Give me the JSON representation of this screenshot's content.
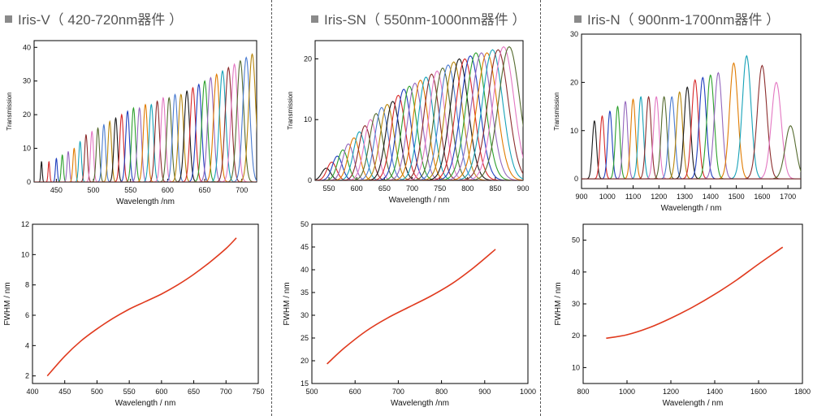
{
  "panels": [
    {
      "title": "Iris-V（ 420-720nm器件 ）"
    },
    {
      "title": "Iris-SN（ 550nm-1000nm器件 ）"
    },
    {
      "title": "Iris-N（ 900nm-1700nm器件 ）"
    }
  ],
  "chart_data": [
    {
      "type": "line",
      "ylabel": "Transmission",
      "xlabel": "Wavelength /nm",
      "xlim": [
        420,
        720
      ],
      "ylim": [
        0,
        42
      ],
      "xticks": [
        450,
        500,
        550,
        600,
        650,
        700
      ],
      "yticks": [
        0,
        10,
        20,
        30,
        40
      ],
      "series": [
        {
          "peak_wavelength": 430,
          "peak_transmission": 6,
          "fwhm": 2.3
        },
        {
          "peak_wavelength": 440,
          "peak_transmission": 6,
          "fwhm": 2.6
        },
        {
          "peak_wavelength": 450,
          "peak_transmission": 7,
          "fwhm": 3.0
        },
        {
          "peak_wavelength": 458,
          "peak_transmission": 8,
          "fwhm": 3.4
        },
        {
          "peak_wavelength": 466,
          "peak_transmission": 9,
          "fwhm": 3.7
        },
        {
          "peak_wavelength": 474,
          "peak_transmission": 10,
          "fwhm": 4.0
        },
        {
          "peak_wavelength": 482,
          "peak_transmission": 12,
          "fwhm": 4.3
        },
        {
          "peak_wavelength": 490,
          "peak_transmission": 14,
          "fwhm": 4.6
        },
        {
          "peak_wavelength": 498,
          "peak_transmission": 15,
          "fwhm": 4.9
        },
        {
          "peak_wavelength": 506,
          "peak_transmission": 16,
          "fwhm": 5.1
        },
        {
          "peak_wavelength": 514,
          "peak_transmission": 17,
          "fwhm": 5.4
        },
        {
          "peak_wavelength": 522,
          "peak_transmission": 18,
          "fwhm": 5.6
        },
        {
          "peak_wavelength": 530,
          "peak_transmission": 19,
          "fwhm": 5.8
        },
        {
          "peak_wavelength": 538,
          "peak_transmission": 20,
          "fwhm": 6.0
        },
        {
          "peak_wavelength": 546,
          "peak_transmission": 21,
          "fwhm": 6.2
        },
        {
          "peak_wavelength": 554,
          "peak_transmission": 22,
          "fwhm": 6.4
        },
        {
          "peak_wavelength": 562,
          "peak_transmission": 22,
          "fwhm": 6.6
        },
        {
          "peak_wavelength": 570,
          "peak_transmission": 23,
          "fwhm": 6.8
        },
        {
          "peak_wavelength": 578,
          "peak_transmission": 23,
          "fwhm": 7.0
        },
        {
          "peak_wavelength": 586,
          "peak_transmission": 24,
          "fwhm": 7.2
        },
        {
          "peak_wavelength": 594,
          "peak_transmission": 25,
          "fwhm": 7.4
        },
        {
          "peak_wavelength": 602,
          "peak_transmission": 25,
          "fwhm": 7.6
        },
        {
          "peak_wavelength": 610,
          "peak_transmission": 26,
          "fwhm": 7.9
        },
        {
          "peak_wavelength": 618,
          "peak_transmission": 26,
          "fwhm": 8.1
        },
        {
          "peak_wavelength": 626,
          "peak_transmission": 27,
          "fwhm": 8.4
        },
        {
          "peak_wavelength": 634,
          "peak_transmission": 28,
          "fwhm": 8.6
        },
        {
          "peak_wavelength": 642,
          "peak_transmission": 29,
          "fwhm": 8.9
        },
        {
          "peak_wavelength": 650,
          "peak_transmission": 30,
          "fwhm": 9.2
        },
        {
          "peak_wavelength": 658,
          "peak_transmission": 31,
          "fwhm": 9.5
        },
        {
          "peak_wavelength": 666,
          "peak_transmission": 32,
          "fwhm": 9.8
        },
        {
          "peak_wavelength": 674,
          "peak_transmission": 33,
          "fwhm": 10.1
        },
        {
          "peak_wavelength": 682,
          "peak_transmission": 34,
          "fwhm": 10.3
        },
        {
          "peak_wavelength": 690,
          "peak_transmission": 35,
          "fwhm": 10.6
        },
        {
          "peak_wavelength": 698,
          "peak_transmission": 36,
          "fwhm": 10.8
        },
        {
          "peak_wavelength": 706,
          "peak_transmission": 37,
          "fwhm": 11.0
        },
        {
          "peak_wavelength": 714,
          "peak_transmission": 38,
          "fwhm": 11.1
        }
      ]
    },
    {
      "type": "line",
      "ylabel": "Transmission",
      "xlabel": "Wavelength / nm",
      "xlim": [
        525,
        900
      ],
      "ylim": [
        0,
        23
      ],
      "xticks": [
        550,
        600,
        650,
        700,
        750,
        800,
        850,
        900
      ],
      "yticks": [
        0,
        10,
        20
      ],
      "series": [
        {
          "peak_wavelength": 545,
          "peak_transmission": 2,
          "fwhm": 19
        },
        {
          "peak_wavelength": 555,
          "peak_transmission": 3,
          "fwhm": 20
        },
        {
          "peak_wavelength": 565,
          "peak_transmission": 4,
          "fwhm": 21
        },
        {
          "peak_wavelength": 575,
          "peak_transmission": 5,
          "fwhm": 22
        },
        {
          "peak_wavelength": 585,
          "peak_transmission": 6,
          "fwhm": 23
        },
        {
          "peak_wavelength": 595,
          "peak_transmission": 7,
          "fwhm": 24
        },
        {
          "peak_wavelength": 605,
          "peak_transmission": 8,
          "fwhm": 25
        },
        {
          "peak_wavelength": 615,
          "peak_transmission": 9,
          "fwhm": 26
        },
        {
          "peak_wavelength": 625,
          "peak_transmission": 10,
          "fwhm": 27
        },
        {
          "peak_wavelength": 635,
          "peak_transmission": 11,
          "fwhm": 28
        },
        {
          "peak_wavelength": 645,
          "peak_transmission": 12,
          "fwhm": 28.5
        },
        {
          "peak_wavelength": 655,
          "peak_transmission": 12.5,
          "fwhm": 29
        },
        {
          "peak_wavelength": 665,
          "peak_transmission": 13,
          "fwhm": 29.5
        },
        {
          "peak_wavelength": 675,
          "peak_transmission": 14,
          "fwhm": 30
        },
        {
          "peak_wavelength": 685,
          "peak_transmission": 15,
          "fwhm": 30.5
        },
        {
          "peak_wavelength": 695,
          "peak_transmission": 15.5,
          "fwhm": 31
        },
        {
          "peak_wavelength": 705,
          "peak_transmission": 16,
          "fwhm": 31.5
        },
        {
          "peak_wavelength": 715,
          "peak_transmission": 16.5,
          "fwhm": 32
        },
        {
          "peak_wavelength": 725,
          "peak_transmission": 17,
          "fwhm": 32.5
        },
        {
          "peak_wavelength": 735,
          "peak_transmission": 17.5,
          "fwhm": 33
        },
        {
          "peak_wavelength": 745,
          "peak_transmission": 18,
          "fwhm": 34
        },
        {
          "peak_wavelength": 755,
          "peak_transmission": 18.5,
          "fwhm": 35
        },
        {
          "peak_wavelength": 765,
          "peak_transmission": 19,
          "fwhm": 36
        },
        {
          "peak_wavelength": 775,
          "peak_transmission": 19.5,
          "fwhm": 37
        },
        {
          "peak_wavelength": 785,
          "peak_transmission": 20,
          "fwhm": 38
        },
        {
          "peak_wavelength": 795,
          "peak_transmission": 20,
          "fwhm": 39
        },
        {
          "peak_wavelength": 805,
          "peak_transmission": 20.5,
          "fwhm": 40
        },
        {
          "peak_wavelength": 815,
          "peak_transmission": 21,
          "fwhm": 41
        },
        {
          "peak_wavelength": 825,
          "peak_transmission": 21,
          "fwhm": 42
        },
        {
          "peak_wavelength": 835,
          "peak_transmission": 21,
          "fwhm": 42.5
        },
        {
          "peak_wavelength": 845,
          "peak_transmission": 21.5,
          "fwhm": 43
        },
        {
          "peak_wavelength": 855,
          "peak_transmission": 21.5,
          "fwhm": 43.5
        },
        {
          "peak_wavelength": 865,
          "peak_transmission": 22,
          "fwhm": 44
        },
        {
          "peak_wavelength": 875,
          "peak_transmission": 22,
          "fwhm": 44.5
        }
      ]
    },
    {
      "type": "line",
      "ylabel": "Transmission",
      "xlabel": "Wavelength / nm",
      "xlim": [
        900,
        1750
      ],
      "ylim": [
        -2,
        30
      ],
      "xticks": [
        900,
        1000,
        1100,
        1200,
        1300,
        1400,
        1500,
        1600,
        1700
      ],
      "yticks": [
        0,
        10,
        20,
        30
      ],
      "series": [
        {
          "peak_wavelength": 950,
          "peak_transmission": 12,
          "fwhm": 19
        },
        {
          "peak_wavelength": 980,
          "peak_transmission": 13,
          "fwhm": 19.5
        },
        {
          "peak_wavelength": 1010,
          "peak_transmission": 14,
          "fwhm": 20
        },
        {
          "peak_wavelength": 1040,
          "peak_transmission": 15,
          "fwhm": 20.5
        },
        {
          "peak_wavelength": 1070,
          "peak_transmission": 16,
          "fwhm": 21
        },
        {
          "peak_wavelength": 1100,
          "peak_transmission": 16.5,
          "fwhm": 22
        },
        {
          "peak_wavelength": 1130,
          "peak_transmission": 17,
          "fwhm": 23
        },
        {
          "peak_wavelength": 1160,
          "peak_transmission": 17,
          "fwhm": 24
        },
        {
          "peak_wavelength": 1190,
          "peak_transmission": 17,
          "fwhm": 25
        },
        {
          "peak_wavelength": 1220,
          "peak_transmission": 17,
          "fwhm": 26
        },
        {
          "peak_wavelength": 1250,
          "peak_transmission": 17,
          "fwhm": 27
        },
        {
          "peak_wavelength": 1280,
          "peak_transmission": 18,
          "fwhm": 28
        },
        {
          "peak_wavelength": 1310,
          "peak_transmission": 19,
          "fwhm": 29
        },
        {
          "peak_wavelength": 1340,
          "peak_transmission": 20.5,
          "fwhm": 31
        },
        {
          "peak_wavelength": 1370,
          "peak_transmission": 21,
          "fwhm": 32
        },
        {
          "peak_wavelength": 1400,
          "peak_transmission": 21.5,
          "fwhm": 33
        },
        {
          "peak_wavelength": 1430,
          "peak_transmission": 22,
          "fwhm": 35
        },
        {
          "peak_wavelength": 1490,
          "peak_transmission": 24,
          "fwhm": 38
        },
        {
          "peak_wavelength": 1540,
          "peak_transmission": 25.5,
          "fwhm": 40
        },
        {
          "peak_wavelength": 1600,
          "peak_transmission": 23.5,
          "fwhm": 43
        },
        {
          "peak_wavelength": 1655,
          "peak_transmission": 20,
          "fwhm": 45
        },
        {
          "peak_wavelength": 1710,
          "peak_transmission": 11,
          "fwhm": 48
        }
      ]
    },
    {
      "type": "line",
      "ylabel": "FWHM / nm",
      "xlabel": "Wavelength / nm",
      "xlim": [
        400,
        750
      ],
      "ylim": [
        1.5,
        12
      ],
      "xticks": [
        400,
        450,
        500,
        550,
        600,
        650,
        700,
        750
      ],
      "yticks": [
        2,
        4,
        6,
        8,
        10,
        12
      ],
      "series": [
        {
          "color": "#e03a1e",
          "x": [
            423,
            450,
            475,
            500,
            525,
            550,
            575,
            600,
            625,
            650,
            675,
            700,
            716
          ],
          "y": [
            2.0,
            3.3,
            4.3,
            5.1,
            5.8,
            6.4,
            6.9,
            7.4,
            8.0,
            8.7,
            9.5,
            10.4,
            11.1
          ]
        }
      ]
    },
    {
      "type": "line",
      "ylabel": "FWHM / nm",
      "xlabel": "Wavelength /nm",
      "xlim": [
        500,
        1000
      ],
      "ylim": [
        15,
        50
      ],
      "xticks": [
        500,
        600,
        700,
        800,
        900,
        1000
      ],
      "yticks": [
        15,
        20,
        25,
        30,
        35,
        40,
        45,
        50
      ],
      "series": [
        {
          "color": "#e03a1e",
          "x": [
            535,
            575,
            625,
            675,
            725,
            775,
            825,
            875,
            925
          ],
          "y": [
            19.3,
            22.8,
            26.5,
            29.4,
            31.8,
            34.2,
            37.0,
            40.5,
            44.5
          ]
        }
      ]
    },
    {
      "type": "line",
      "ylabel": "FWHM / nm",
      "xlabel": "Wavelength / nm",
      "xlim": [
        800,
        1800
      ],
      "ylim": [
        5,
        55
      ],
      "xticks": [
        800,
        1000,
        1200,
        1400,
        1600,
        1800
      ],
      "yticks": [
        10,
        20,
        30,
        40,
        50
      ],
      "series": [
        {
          "color": "#e03a1e",
          "x": [
            905,
            1000,
            1100,
            1200,
            1300,
            1400,
            1500,
            1600,
            1710
          ],
          "y": [
            19.2,
            20.3,
            22.5,
            25.5,
            29.0,
            33.0,
            37.5,
            42.5,
            47.8
          ]
        }
      ]
    }
  ]
}
